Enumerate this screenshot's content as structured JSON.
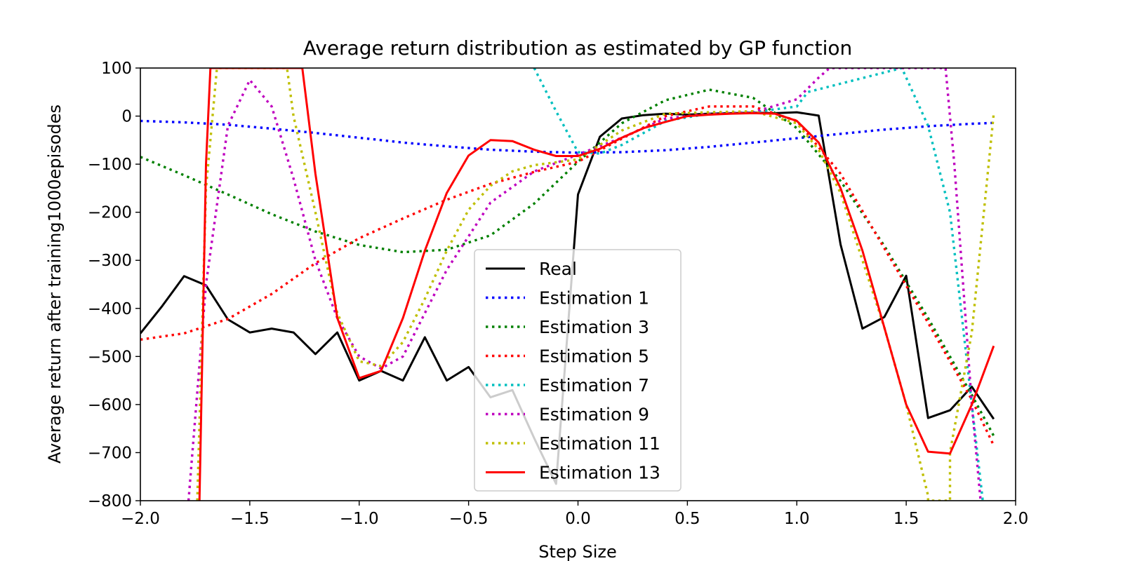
{
  "chart_data": {
    "type": "line",
    "title": "Average return distribution as estimated by GP function",
    "xlabel": "Step Size",
    "ylabel": "Average return after training1000episodes",
    "xlim": [
      -2.0,
      2.0
    ],
    "ylim": [
      -800,
      100
    ],
    "x_ticks": [
      "−2.0",
      "−1.5",
      "−1.0",
      "−0.5",
      "0.0",
      "0.5",
      "1.0",
      "1.5",
      "2.0"
    ],
    "y_ticks": [
      "100",
      "0",
      "−100",
      "−200",
      "−300",
      "−400",
      "−500",
      "−600",
      "−700",
      "−800"
    ],
    "x_tick_values": [
      -2.0,
      -1.5,
      -1.0,
      -0.5,
      0.0,
      0.5,
      1.0,
      1.5,
      2.0
    ],
    "y_tick_values": [
      100,
      0,
      -100,
      -200,
      -300,
      -400,
      -500,
      -600,
      -700,
      -800
    ],
    "grid": false,
    "legend_position": "bottom-center",
    "series": [
      {
        "name": "Real",
        "color": "#000000",
        "style": "solid",
        "x": [
          -2.0,
          -1.9,
          -1.8,
          -1.7,
          -1.6,
          -1.5,
          -1.4,
          -1.3,
          -1.2,
          -1.1,
          -1.0,
          -0.9,
          -0.8,
          -0.7,
          -0.6,
          -0.5,
          -0.4,
          -0.3,
          -0.2,
          -0.1,
          0.0,
          0.1,
          0.2,
          0.3,
          0.4,
          0.5,
          0.6,
          0.7,
          0.8,
          0.9,
          1.0,
          1.1,
          1.2,
          1.3,
          1.4,
          1.5,
          1.6,
          1.7,
          1.8,
          1.9
        ],
        "y": [
          -452,
          -395,
          -333,
          -352,
          -423,
          -450,
          -442,
          -450,
          -495,
          -450,
          -550,
          -530,
          -550,
          -460,
          -550,
          -522,
          -585,
          -570,
          -670,
          -765,
          -163,
          -43,
          -5,
          2,
          5,
          3,
          5,
          6,
          7,
          6,
          8,
          1,
          -267,
          -442,
          -418,
          -332,
          -628,
          -612,
          -563,
          -630
        ]
      },
      {
        "name": "Estimation 1",
        "color": "#0000ff",
        "style": "dotted",
        "x": [
          -2.0,
          -1.8,
          -1.6,
          -1.4,
          -1.2,
          -1.0,
          -0.8,
          -0.6,
          -0.4,
          -0.2,
          0.0,
          0.2,
          0.4,
          0.6,
          0.8,
          1.0,
          1.2,
          1.4,
          1.6,
          1.8,
          1.9
        ],
        "y": [
          -10,
          -13,
          -18,
          -26,
          -35,
          -45,
          -55,
          -63,
          -70,
          -74,
          -76,
          -75,
          -71,
          -64,
          -55,
          -46,
          -37,
          -28,
          -21,
          -16,
          -14
        ]
      },
      {
        "name": "Estimation 3",
        "color": "#008000",
        "style": "dotted",
        "x": [
          -2.0,
          -1.8,
          -1.6,
          -1.4,
          -1.2,
          -1.0,
          -0.8,
          -0.6,
          -0.4,
          -0.2,
          0.0,
          0.2,
          0.4,
          0.6,
          0.8,
          1.0,
          1.2,
          1.4,
          1.6,
          1.8,
          1.9
        ],
        "y": [
          -85,
          -123,
          -163,
          -204,
          -240,
          -268,
          -283,
          -278,
          -248,
          -182,
          -95,
          -15,
          33,
          55,
          38,
          -25,
          -135,
          -270,
          -420,
          -580,
          -665
        ]
      },
      {
        "name": "Estimation 5",
        "color": "#ff0000",
        "style": "dotted",
        "x": [
          -2.0,
          -1.8,
          -1.6,
          -1.4,
          -1.2,
          -1.0,
          -0.8,
          -0.6,
          -0.4,
          -0.2,
          0.0,
          0.2,
          0.4,
          0.6,
          0.8,
          1.0,
          1.2,
          1.4,
          1.6,
          1.8,
          1.9
        ],
        "y": [
          -465,
          -452,
          -422,
          -370,
          -306,
          -254,
          -213,
          -174,
          -141,
          -116,
          -95,
          -47,
          0,
          20,
          20,
          -10,
          -120,
          -275,
          -430,
          -590,
          -685
        ]
      },
      {
        "name": "Estimation 7",
        "color": "#00bfbf",
        "style": "dotted",
        "x": [
          -0.2,
          -0.1,
          0.0,
          0.1,
          0.2,
          0.4,
          0.6,
          0.8,
          1.0,
          1.05,
          1.48,
          1.55,
          1.6,
          1.7,
          1.75,
          1.8,
          1.85
        ],
        "y": [
          100,
          10,
          -75,
          -78,
          -60,
          -10,
          5,
          8,
          20,
          50,
          100,
          30,
          -20,
          -200,
          -400,
          -600,
          -800
        ]
      },
      {
        "name": "Estimation 9",
        "color": "#bf00bf",
        "style": "dotted",
        "x": [
          -1.78,
          -1.7,
          -1.6,
          -1.5,
          -1.4,
          -1.3,
          -1.2,
          -1.1,
          -1.0,
          -0.9,
          -0.8,
          -0.6,
          -0.4,
          -0.2,
          0.0,
          0.2,
          0.4,
          0.6,
          0.8,
          1.0,
          1.1,
          1.15,
          1.68,
          1.72,
          1.76,
          1.8,
          1.84
        ],
        "y": [
          -800,
          -350,
          -20,
          75,
          20,
          -130,
          -300,
          -420,
          -500,
          -525,
          -500,
          -320,
          -180,
          -115,
          -80,
          -45,
          -5,
          5,
          8,
          35,
          80,
          100,
          100,
          -100,
          -350,
          -600,
          -800
        ]
      },
      {
        "name": "Estimation 11",
        "color": "#bfbf00",
        "style": "dotted",
        "x": [
          -1.74,
          -1.7,
          -1.65,
          -1.63,
          -1.33,
          -1.3,
          -1.2,
          -1.1,
          -1.0,
          -0.9,
          -0.8,
          -0.7,
          -0.6,
          -0.5,
          -0.4,
          -0.3,
          -0.2,
          0.0,
          0.2,
          0.4,
          0.6,
          0.8,
          1.0,
          1.1,
          1.2,
          1.3,
          1.4,
          1.5,
          1.6,
          1.6,
          1.7,
          1.7,
          1.8,
          1.9
        ],
        "y": [
          -800,
          -150,
          100,
          100,
          100,
          0,
          -200,
          -410,
          -510,
          -520,
          -470,
          -380,
          -280,
          -195,
          -145,
          -115,
          -102,
          -90,
          -30,
          5,
          8,
          10,
          -15,
          -70,
          -160,
          -300,
          -440,
          -600,
          -790,
          -800,
          -800,
          -700,
          -450,
          5
        ]
      },
      {
        "name": "Estimation 13",
        "color": "#ff0000",
        "style": "solid",
        "x": [
          -1.73,
          -1.7,
          -1.68,
          -1.26,
          -1.2,
          -1.1,
          -1.0,
          -0.9,
          -0.8,
          -0.7,
          -0.6,
          -0.5,
          -0.4,
          -0.3,
          -0.2,
          -0.1,
          0.0,
          0.1,
          0.2,
          0.3,
          0.4,
          0.5,
          0.6,
          0.7,
          0.8,
          0.9,
          1.0,
          1.1,
          1.2,
          1.3,
          1.4,
          1.5,
          1.6,
          1.7,
          1.8,
          1.9
        ],
        "y": [
          -800,
          -100,
          100,
          100,
          -120,
          -420,
          -545,
          -530,
          -420,
          -280,
          -160,
          -82,
          -50,
          -52,
          -70,
          -83,
          -83,
          -68,
          -45,
          -25,
          -12,
          0,
          3,
          5,
          6,
          5,
          -10,
          -55,
          -150,
          -280,
          -440,
          -600,
          -698,
          -702,
          -600,
          -478
        ]
      }
    ]
  }
}
